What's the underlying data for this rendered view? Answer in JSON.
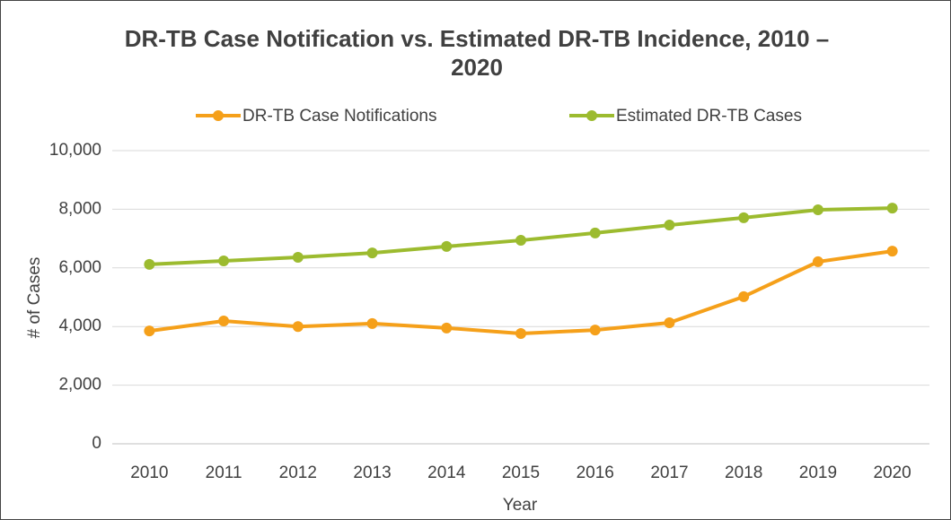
{
  "chart_data": {
    "type": "line",
    "title": "DR-TB Case Notification vs. Estimated DR-TB Incidence, 2010 – 2020",
    "x_label": "Year",
    "y_label": "# of Cases",
    "categories": [
      "2010",
      "2011",
      "2012",
      "2013",
      "2014",
      "2015",
      "2016",
      "2017",
      "2018",
      "2019",
      "2020"
    ],
    "series": [
      {
        "name": "DR-TB Case Notifications",
        "color": "#f5a01a",
        "values": [
          3850,
          4190,
          4000,
          4100,
          3950,
          3760,
          3880,
          4130,
          5020,
          6210,
          6570
        ]
      },
      {
        "name": "Estimated DR-TB Cases",
        "color": "#9cbb2f",
        "values": [
          6120,
          6240,
          6360,
          6510,
          6730,
          6940,
          7190,
          7460,
          7710,
          7980,
          8040
        ]
      }
    ],
    "ylim": [
      0,
      10000
    ],
    "yticks": [
      0,
      {
        "value": 2000,
        "label": "2,000"
      },
      {
        "value": 4000,
        "label": "4,000"
      },
      {
        "value": 6000,
        "label": "6,000"
      },
      {
        "value": 8000,
        "label": "8,000"
      },
      {
        "value": 10000,
        "label": "10,000"
      }
    ],
    "grid": true,
    "legend": "top"
  }
}
